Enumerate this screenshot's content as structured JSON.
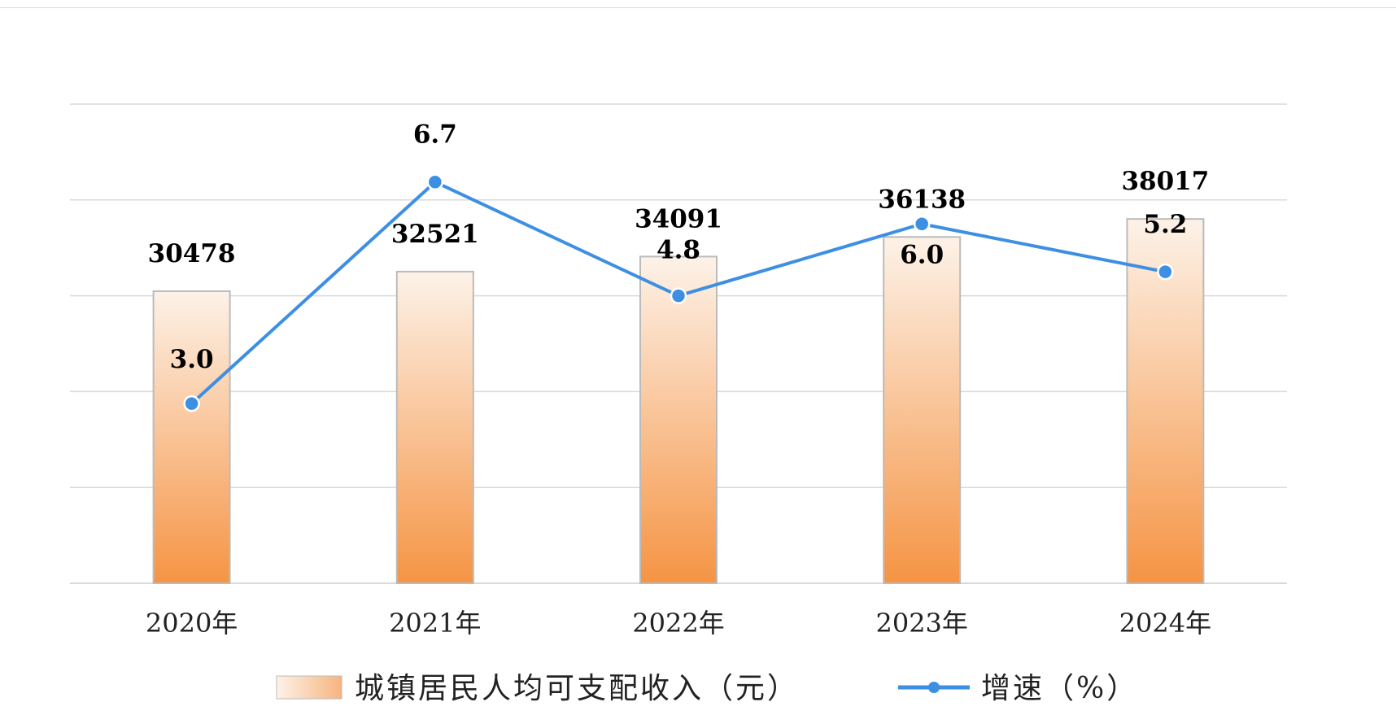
{
  "colors": {
    "bar_top": "#fdf2e8",
    "bar_bottom": "#f59444",
    "bar_stroke": "#bbbbbb",
    "line": "#3d8fe3",
    "grid": "#d9d9d9"
  },
  "chart_data": {
    "type": "bar+line",
    "categories": [
      "2020年",
      "2021年",
      "2022年",
      "2023年",
      "2024年"
    ],
    "series": [
      {
        "name": "城镇居民人均可支配收入（元）",
        "type": "bar",
        "axis": "left",
        "values": [
          30478,
          32521,
          34091,
          36138,
          38017
        ],
        "labels": [
          "30478",
          "32521",
          "34091",
          "36138",
          "38017"
        ]
      },
      {
        "name": "增速（%）",
        "type": "line",
        "axis": "right",
        "values": [
          3.0,
          6.7,
          4.8,
          6.0,
          5.2
        ],
        "labels": [
          "3.0",
          "6.7",
          "4.8",
          "6.0",
          "5.2"
        ]
      }
    ],
    "ylim_left": [
      0,
      50000
    ],
    "ylim_right": [
      0,
      8
    ],
    "grid": true,
    "axis_tick_labels_shown": false,
    "legend_position": "bottom"
  },
  "legend": {
    "bar_label": "城镇居民人均可支配收入（元）",
    "line_label": "增速（%）"
  }
}
